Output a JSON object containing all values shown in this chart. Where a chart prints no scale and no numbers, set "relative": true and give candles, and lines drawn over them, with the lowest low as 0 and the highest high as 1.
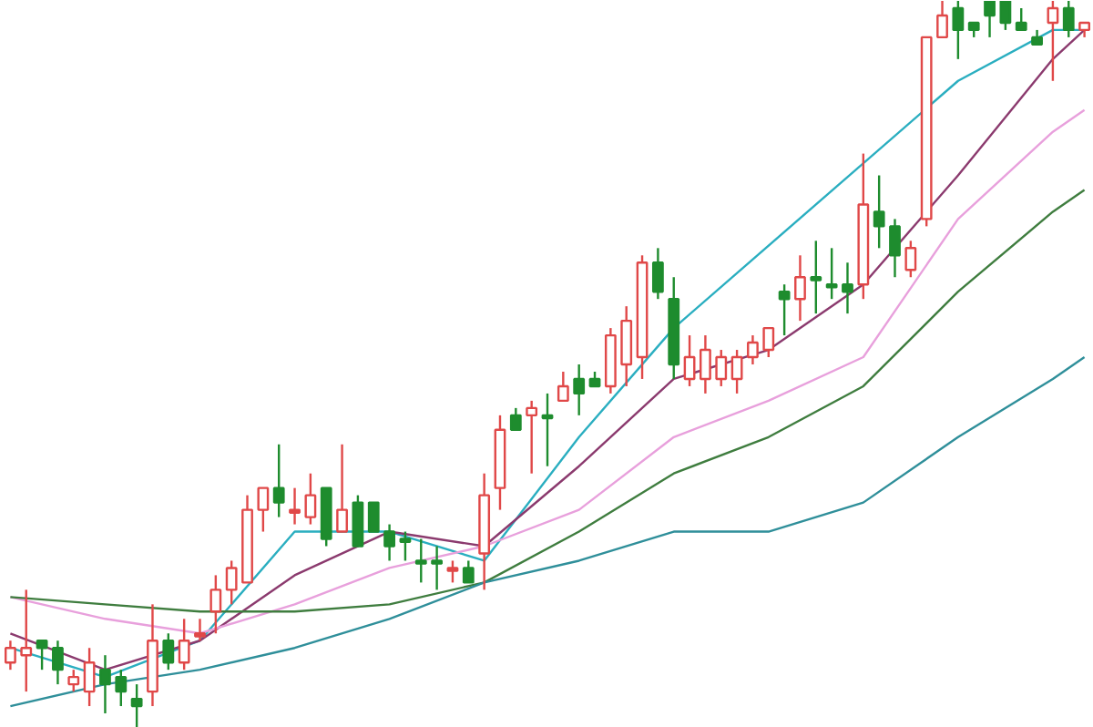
{
  "chart_data": {
    "type": "candlestick",
    "relative": true,
    "categories": [
      null,
      null,
      null,
      null,
      null,
      null,
      null,
      null,
      null,
      null,
      null,
      null,
      null,
      null,
      null,
      null,
      null,
      null,
      null,
      null,
      null,
      null,
      null,
      null,
      null,
      null,
      null,
      null,
      null,
      null,
      null,
      null,
      null,
      null,
      null,
      null,
      null,
      null,
      null,
      null,
      null,
      null,
      null,
      null,
      null,
      null,
      null,
      null,
      null,
      null,
      null,
      null,
      null,
      null,
      null,
      null,
      null,
      null,
      null,
      null,
      null,
      null,
      null,
      null,
      null,
      null,
      null,
      null,
      null
    ],
    "ohlc": [
      [
        0.09,
        0.12,
        0.08,
        0.11
      ],
      [
        0.1,
        0.19,
        0.05,
        0.11
      ],
      [
        0.12,
        0.12,
        0.08,
        0.11
      ],
      [
        0.11,
        0.12,
        0.06,
        0.08
      ],
      [
        0.06,
        0.08,
        0.05,
        0.07
      ],
      [
        0.05,
        0.11,
        0.03,
        0.09
      ],
      [
        0.08,
        0.1,
        0.02,
        0.06
      ],
      [
        0.07,
        0.08,
        0.03,
        0.05
      ],
      [
        0.04,
        0.06,
        0.0,
        0.03
      ],
      [
        0.05,
        0.17,
        0.03,
        0.12
      ],
      [
        0.12,
        0.13,
        0.08,
        0.09
      ],
      [
        0.09,
        0.15,
        0.08,
        0.12
      ],
      [
        0.13,
        0.15,
        0.12,
        0.13
      ],
      [
        0.16,
        0.21,
        0.13,
        0.19
      ],
      [
        0.19,
        0.23,
        0.17,
        0.22
      ],
      [
        0.2,
        0.32,
        0.2,
        0.3
      ],
      [
        0.3,
        0.33,
        0.27,
        0.33
      ],
      [
        0.33,
        0.39,
        0.29,
        0.31
      ],
      [
        0.3,
        0.33,
        0.28,
        0.3
      ],
      [
        0.29,
        0.35,
        0.28,
        0.32
      ],
      [
        0.33,
        0.33,
        0.25,
        0.26
      ],
      [
        0.27,
        0.39,
        0.27,
        0.3
      ],
      [
        0.31,
        0.32,
        0.25,
        0.25
      ],
      [
        0.31,
        0.31,
        0.27,
        0.27
      ],
      [
        0.27,
        0.28,
        0.23,
        0.25
      ],
      [
        0.26,
        0.27,
        0.23,
        0.26
      ],
      [
        0.23,
        0.26,
        0.2,
        0.23
      ],
      [
        0.23,
        0.25,
        0.19,
        0.23
      ],
      [
        0.22,
        0.23,
        0.2,
        0.22
      ],
      [
        0.22,
        0.23,
        0.2,
        0.2
      ],
      [
        0.24,
        0.35,
        0.19,
        0.32
      ],
      [
        0.33,
        0.43,
        0.3,
        0.41
      ],
      [
        0.43,
        0.44,
        0.41,
        0.41
      ],
      [
        0.43,
        0.45,
        0.35,
        0.44
      ],
      [
        0.43,
        0.46,
        0.36,
        0.43
      ],
      [
        0.45,
        0.49,
        0.45,
        0.47
      ],
      [
        0.48,
        0.5,
        0.43,
        0.46
      ],
      [
        0.48,
        0.49,
        0.47,
        0.47
      ],
      [
        0.47,
        0.55,
        0.46,
        0.54
      ],
      [
        0.5,
        0.58,
        0.47,
        0.56
      ],
      [
        0.51,
        0.65,
        0.48,
        0.64
      ],
      [
        0.64,
        0.66,
        0.59,
        0.6
      ],
      [
        0.59,
        0.62,
        0.48,
        0.5
      ],
      [
        0.48,
        0.54,
        0.47,
        0.51
      ],
      [
        0.48,
        0.54,
        0.46,
        0.52
      ],
      [
        0.48,
        0.52,
        0.47,
        0.51
      ],
      [
        0.48,
        0.52,
        0.46,
        0.51
      ],
      [
        0.51,
        0.54,
        0.5,
        0.53
      ],
      [
        0.52,
        0.55,
        0.51,
        0.55
      ],
      [
        0.6,
        0.61,
        0.54,
        0.59
      ],
      [
        0.59,
        0.65,
        0.56,
        0.62
      ],
      [
        0.62,
        0.67,
        0.57,
        0.62
      ],
      [
        0.61,
        0.66,
        0.59,
        0.61
      ],
      [
        0.61,
        0.64,
        0.57,
        0.6
      ],
      [
        0.61,
        0.79,
        0.59,
        0.72
      ],
      [
        0.71,
        0.76,
        0.66,
        0.69
      ],
      [
        0.69,
        0.7,
        0.62,
        0.65
      ],
      [
        0.63,
        0.67,
        0.62,
        0.66
      ],
      [
        0.7,
        0.95,
        0.69,
        0.95
      ],
      [
        0.95,
        1.0,
        0.95,
        0.98
      ],
      [
        0.99,
        1.0,
        0.92,
        0.96
      ],
      [
        0.97,
        0.97,
        0.95,
        0.96
      ],
      [
        1.0,
        1.0,
        0.95,
        0.98
      ],
      [
        1.0,
        1.0,
        0.96,
        0.97
      ],
      [
        0.97,
        0.99,
        0.96,
        0.96
      ],
      [
        0.95,
        0.96,
        0.94,
        0.94
      ],
      [
        0.97,
        1.0,
        0.89,
        0.99
      ],
      [
        0.99,
        1.0,
        0.95,
        0.96
      ],
      [
        0.96,
        0.97,
        0.95,
        0.97
      ]
    ],
    "colors": [
      "#e04848",
      "#e04848",
      "#1e8c2e",
      "#1e8c2e",
      "#e04848",
      "#e04848",
      "#1e8c2e",
      "#1e8c2e",
      "#1e8c2e",
      "#e04848",
      "#1e8c2e",
      "#e04848",
      "#e04848",
      "#e04848",
      "#e04848",
      "#e04848",
      "#e04848",
      "#1e8c2e",
      "#e04848",
      "#e04848",
      "#1e8c2e",
      "#e04848",
      "#1e8c2e",
      "#1e8c2e",
      "#1e8c2e",
      "#1e8c2e",
      "#1e8c2e",
      "#1e8c2e",
      "#e04848",
      "#1e8c2e",
      "#e04848",
      "#e04848",
      "#1e8c2e",
      "#e04848",
      "#1e8c2e",
      "#e04848",
      "#1e8c2e",
      "#1e8c2e",
      "#e04848",
      "#e04848",
      "#e04848",
      "#1e8c2e",
      "#1e8c2e",
      "#e04848",
      "#e04848",
      "#e04848",
      "#e04848",
      "#e04848",
      "#e04848",
      "#1e8c2e",
      "#e04848",
      "#1e8c2e",
      "#1e8c2e",
      "#1e8c2e",
      "#e04848",
      "#1e8c2e",
      "#1e8c2e",
      "#e04848",
      "#e04848",
      "#e04848",
      "#1e8c2e",
      "#1e8c2e",
      "#1e8c2e",
      "#1e8c2e",
      "#1e8c2e",
      "#1e8c2e",
      "#e04848",
      "#1e8c2e",
      "#e04848"
    ],
    "series": [
      {
        "type": "line",
        "color": "#2aaec0",
        "values": [
          0.11,
          null,
          null,
          null,
          null,
          null,
          0.07,
          null,
          null,
          null,
          null,
          null,
          0.12,
          null,
          null,
          null,
          null,
          null,
          0.27,
          null,
          null,
          null,
          null,
          null,
          0.27,
          null,
          null,
          null,
          null,
          null,
          0.23,
          null,
          null,
          null,
          null,
          null,
          0.4,
          null,
          null,
          null,
          null,
          null,
          0.55,
          null,
          null,
          null,
          null,
          null,
          null,
          null,
          null,
          null,
          null,
          null,
          null,
          null,
          null,
          null,
          null,
          null,
          0.89,
          null,
          null,
          null,
          null,
          null,
          0.96,
          null,
          0.96
        ]
      },
      {
        "type": "line",
        "color": "#8b3a6e",
        "values": [
          0.13,
          null,
          null,
          null,
          null,
          null,
          0.08,
          null,
          null,
          null,
          null,
          null,
          0.12,
          null,
          null,
          null,
          null,
          null,
          0.21,
          null,
          null,
          null,
          null,
          null,
          0.27,
          null,
          null,
          null,
          null,
          null,
          0.25,
          null,
          null,
          null,
          null,
          null,
          0.36,
          null,
          null,
          null,
          null,
          null,
          0.48,
          null,
          null,
          null,
          null,
          null,
          0.52,
          null,
          null,
          null,
          null,
          null,
          0.61,
          null,
          null,
          null,
          null,
          null,
          0.76,
          null,
          null,
          null,
          null,
          null,
          0.92,
          null,
          0.96
        ]
      },
      {
        "type": "line",
        "color": "#e8a0dc",
        "values": [
          0.18,
          null,
          null,
          null,
          null,
          null,
          0.15,
          null,
          null,
          null,
          null,
          null,
          0.13,
          null,
          null,
          null,
          null,
          null,
          0.17,
          null,
          null,
          null,
          null,
          null,
          0.22,
          null,
          null,
          null,
          null,
          null,
          0.25,
          null,
          null,
          null,
          null,
          null,
          0.3,
          null,
          null,
          null,
          null,
          null,
          0.4,
          null,
          null,
          null,
          null,
          null,
          0.45,
          null,
          null,
          null,
          null,
          null,
          0.51,
          null,
          null,
          null,
          null,
          null,
          0.7,
          null,
          null,
          null,
          null,
          null,
          0.82,
          null,
          0.85
        ]
      },
      {
        "type": "line",
        "color": "#3f7d3f",
        "values": [
          0.18,
          null,
          null,
          null,
          null,
          null,
          0.17,
          null,
          null,
          null,
          null,
          null,
          0.16,
          null,
          null,
          null,
          null,
          null,
          0.16,
          null,
          null,
          null,
          null,
          null,
          0.17,
          null,
          null,
          null,
          null,
          null,
          0.2,
          null,
          null,
          null,
          null,
          null,
          0.27,
          null,
          null,
          null,
          null,
          null,
          0.35,
          null,
          null,
          null,
          null,
          null,
          0.4,
          null,
          null,
          null,
          null,
          null,
          0.47,
          null,
          null,
          null,
          null,
          null,
          0.6,
          null,
          null,
          null,
          null,
          null,
          0.71,
          null,
          0.74
        ]
      },
      {
        "type": "line",
        "color": "#2f8f9a",
        "values": [
          0.03,
          null,
          null,
          null,
          null,
          null,
          0.06,
          null,
          null,
          null,
          null,
          null,
          0.08,
          null,
          null,
          null,
          null,
          null,
          0.11,
          null,
          null,
          null,
          null,
          null,
          0.15,
          null,
          null,
          null,
          null,
          null,
          0.2,
          null,
          null,
          null,
          null,
          null,
          0.23,
          null,
          null,
          null,
          null,
          null,
          0.27,
          null,
          null,
          null,
          null,
          null,
          0.27,
          null,
          null,
          null,
          null,
          null,
          0.31,
          null,
          null,
          null,
          null,
          null,
          0.4,
          null,
          null,
          null,
          null,
          null,
          0.48,
          null,
          0.51
        ]
      }
    ]
  }
}
